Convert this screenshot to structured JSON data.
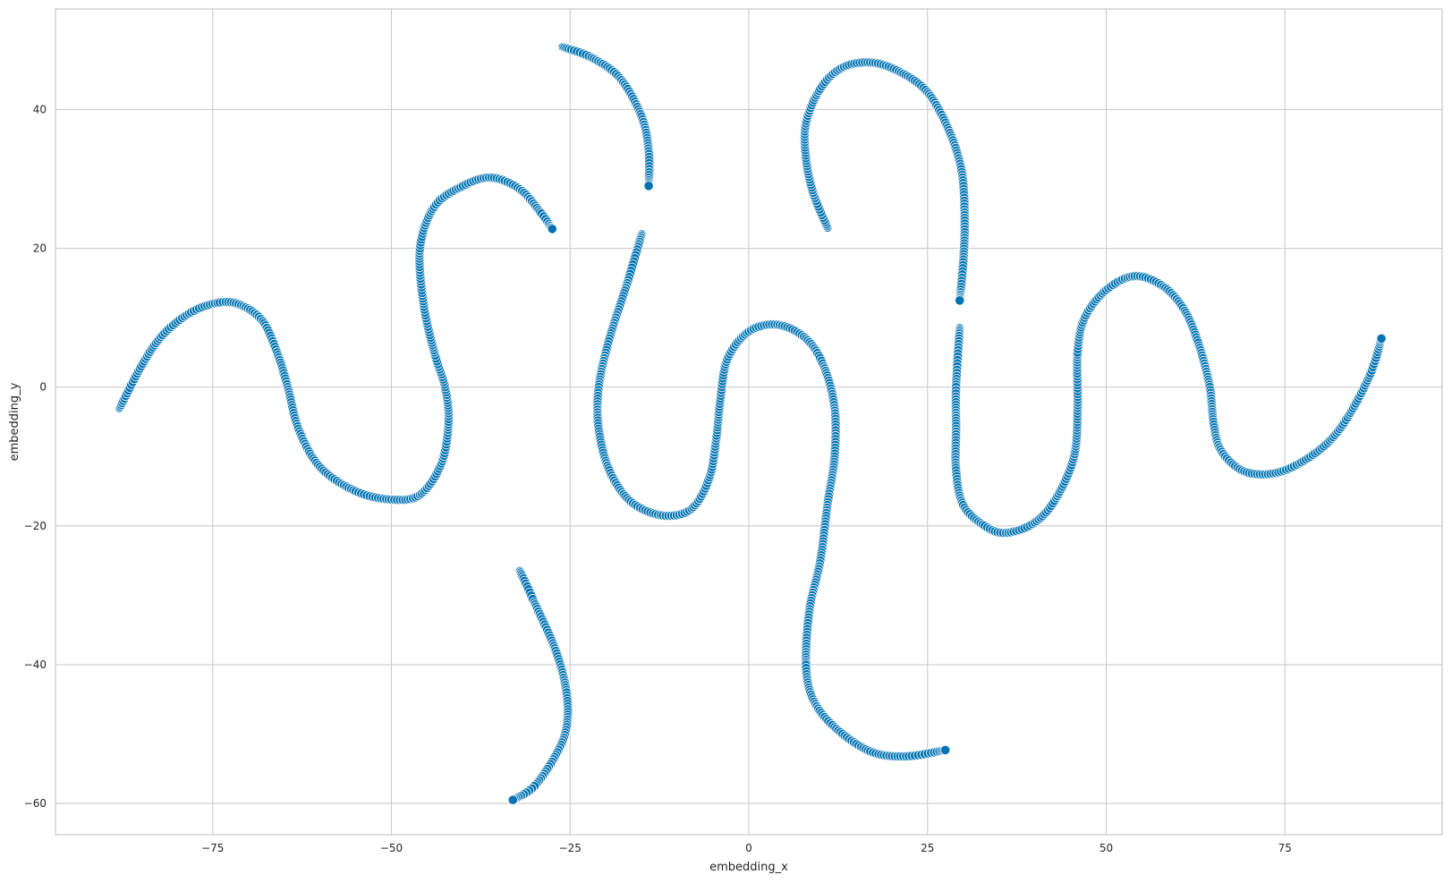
{
  "chart_data": {
    "type": "scatter",
    "title": "",
    "xlabel": "embedding_x",
    "ylabel": "embedding_y",
    "xlim": [
      -97,
      97
    ],
    "ylim": [
      -64.5,
      54.5
    ],
    "xticks": [
      -75,
      -50,
      -25,
      0,
      25,
      50,
      75
    ],
    "yticks": [
      -60,
      -40,
      -20,
      0,
      20,
      40
    ],
    "xtick_labels": [
      "−75",
      "−50",
      "−25",
      "0",
      "25",
      "50",
      "75"
    ],
    "ytick_labels": [
      "−60",
      "−40",
      "−20",
      "0",
      "20",
      "40"
    ],
    "grid": true,
    "legend": "none",
    "marker_color": "#0072b2",
    "marker_edge_color": "#ffffff",
    "background": "#ffffff",
    "series": [
      {
        "points": [
          [
            -88,
            -3
          ],
          [
            -85,
            3
          ],
          [
            -82,
            7.5
          ],
          [
            -78,
            10.8
          ],
          [
            -74,
            12.2
          ],
          [
            -71,
            11.8
          ],
          [
            -68,
            9.5
          ],
          [
            -66,
            5
          ],
          [
            -64.5,
            0
          ],
          [
            -63,
            -6
          ],
          [
            -60,
            -11.5
          ],
          [
            -55,
            -15
          ],
          [
            -50,
            -16.2
          ],
          [
            -46,
            -15.5
          ],
          [
            -43,
            -11
          ],
          [
            -42,
            -5
          ],
          [
            -42.5,
            0
          ],
          [
            -44,
            5
          ],
          [
            -45.5,
            12
          ],
          [
            -46,
            20
          ],
          [
            -44,
            26
          ],
          [
            -40,
            29
          ],
          [
            -36,
            30.2
          ],
          [
            -32,
            28.5
          ],
          [
            -29,
            25
          ],
          [
            -27.5,
            22.8
          ]
        ]
      },
      {
        "points": [
          [
            -26,
            49
          ],
          [
            -22,
            47.5
          ],
          [
            -18,
            44.5
          ],
          [
            -15,
            39
          ],
          [
            -14,
            34
          ],
          [
            -14,
            29
          ]
        ]
      },
      {
        "points": [
          [
            -15,
            22
          ],
          [
            -17,
            15
          ],
          [
            -19.5,
            7
          ],
          [
            -21,
            0
          ],
          [
            -21,
            -6
          ],
          [
            -19.5,
            -12
          ],
          [
            -16.5,
            -16.5
          ],
          [
            -12,
            -18.5
          ],
          [
            -8,
            -17.5
          ],
          [
            -5.5,
            -13
          ],
          [
            -4.5,
            -7
          ],
          [
            -4,
            -2
          ],
          [
            -3,
            4
          ],
          [
            0,
            8
          ],
          [
            4,
            9
          ],
          [
            8,
            7
          ],
          [
            10.5,
            3
          ],
          [
            12,
            -3
          ],
          [
            12,
            -10
          ],
          [
            11,
            -17
          ],
          [
            10,
            -25
          ],
          [
            8.5,
            -32
          ],
          [
            8,
            -40
          ],
          [
            9,
            -45
          ],
          [
            12,
            -49
          ],
          [
            17,
            -52.5
          ],
          [
            22,
            -53.2
          ],
          [
            27.5,
            -52.3
          ]
        ]
      },
      {
        "points": [
          [
            -32,
            -26.5
          ],
          [
            -30,
            -31
          ],
          [
            -27,
            -38
          ],
          [
            -25.5,
            -44
          ],
          [
            -25.5,
            -49
          ],
          [
            -27,
            -53
          ],
          [
            -30,
            -57.5
          ],
          [
            -33,
            -59.5
          ]
        ]
      },
      {
        "points": [
          [
            11,
            23
          ],
          [
            9,
            28
          ],
          [
            8,
            33
          ],
          [
            8,
            38
          ],
          [
            10,
            43
          ],
          [
            13,
            46
          ],
          [
            17,
            46.8
          ],
          [
            21,
            45.5
          ],
          [
            25,
            42.5
          ],
          [
            28,
            37
          ],
          [
            29.8,
            31
          ],
          [
            30.2,
            24
          ],
          [
            30,
            18
          ],
          [
            29.5,
            12.5
          ]
        ]
      },
      {
        "points": [
          [
            29.5,
            8.5
          ],
          [
            29,
            0
          ],
          [
            29,
            -6
          ],
          [
            29,
            -12
          ],
          [
            30,
            -17
          ],
          [
            33,
            -20
          ],
          [
            36,
            -21
          ],
          [
            40,
            -19.5
          ],
          [
            43,
            -16
          ],
          [
            45.5,
            -10
          ],
          [
            46,
            -3
          ],
          [
            46,
            5
          ],
          [
            47,
            10
          ],
          [
            50,
            14
          ],
          [
            54,
            16
          ],
          [
            58,
            14.5
          ],
          [
            61,
            11
          ],
          [
            63,
            6
          ],
          [
            64.5,
            0
          ],
          [
            65,
            -5
          ],
          [
            66,
            -9
          ],
          [
            69,
            -12
          ],
          [
            73,
            -12.5
          ],
          [
            77,
            -11
          ],
          [
            81,
            -8
          ],
          [
            84,
            -4
          ],
          [
            87,
            2
          ],
          [
            88.5,
            7
          ]
        ]
      }
    ]
  }
}
